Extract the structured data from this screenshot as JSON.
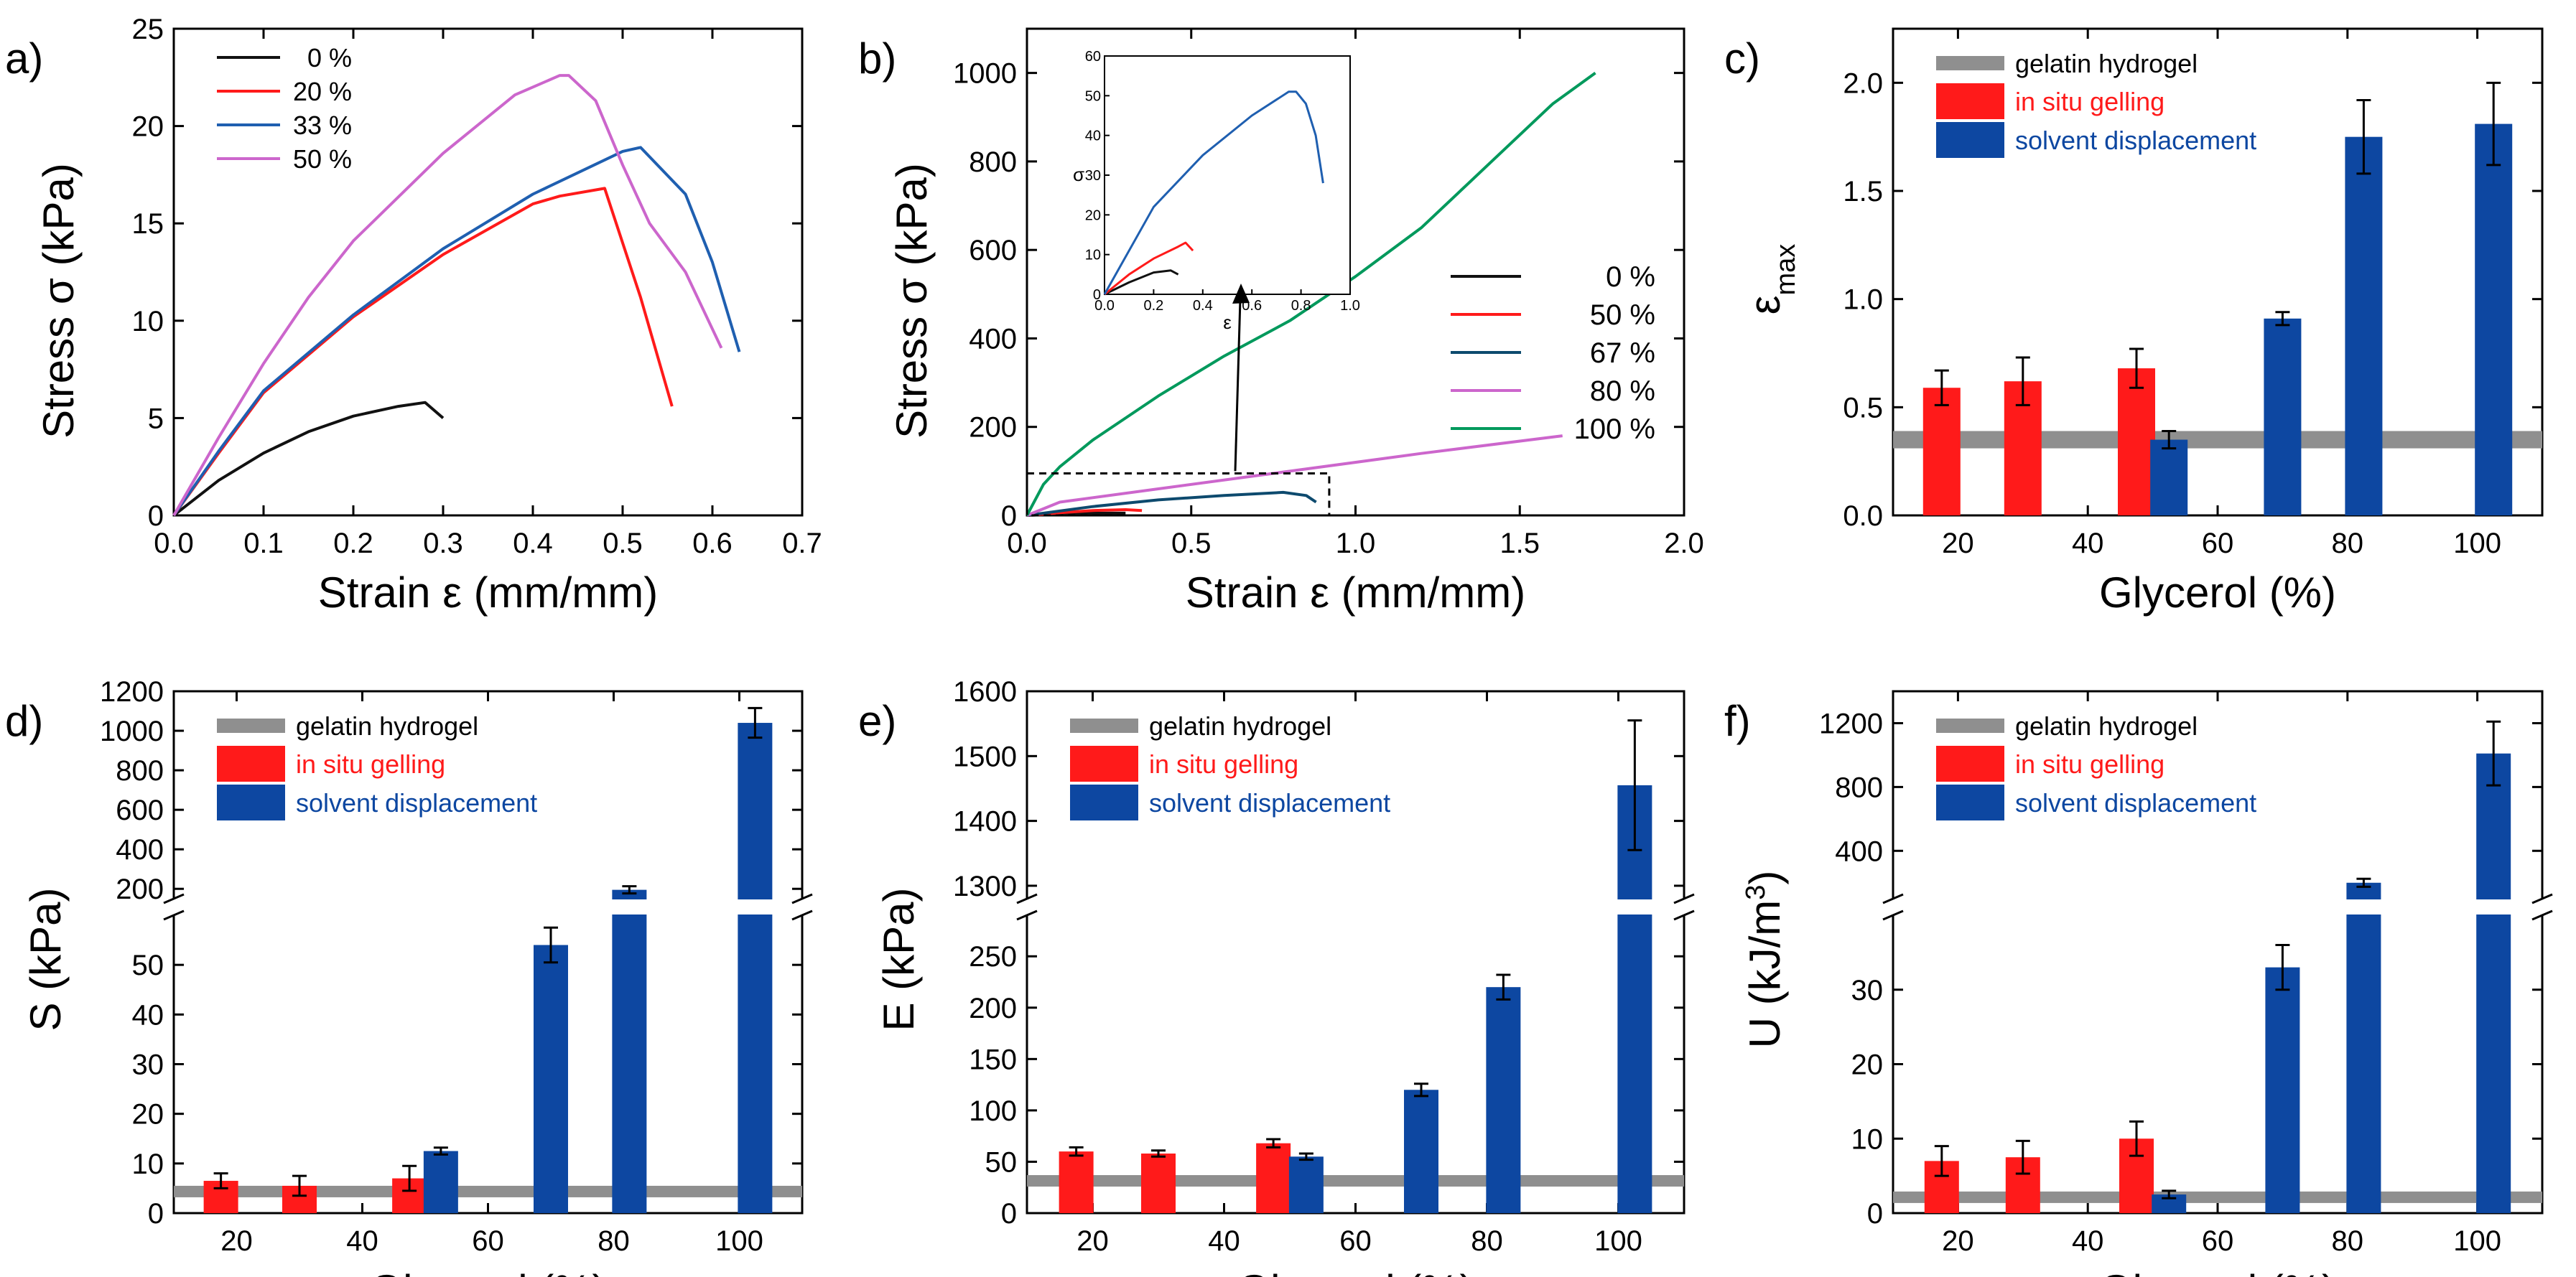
{
  "figure": {
    "colors": {
      "red": "#ff1a1a",
      "blue": "#0d47a1",
      "gray": "#8f8f8f",
      "axis": "#000000"
    }
  },
  "chart_data": [
    {
      "id": "a",
      "type": "line",
      "label": "a)",
      "xlabel": "Strain ε (mm/mm)",
      "ylabel": "Stress σ (kPa)",
      "xlim": [
        0,
        0.7
      ],
      "ylim": [
        0,
        25
      ],
      "xticks": [
        "0.0",
        "0.1",
        "0.2",
        "0.3",
        "0.4",
        "0.5",
        "0.6",
        "0.7"
      ],
      "xtick_values": [
        0,
        0.1,
        0.2,
        0.3,
        0.4,
        0.5,
        0.6,
        0.7
      ],
      "yticks": [
        "0",
        "5",
        "10",
        "15",
        "20",
        "25"
      ],
      "ytick_values": [
        0,
        5,
        10,
        15,
        20,
        25
      ],
      "legend_position": "top-left",
      "series": [
        {
          "name": "0 %",
          "color": "#111111",
          "x": [
            0,
            0.05,
            0.1,
            0.15,
            0.2,
            0.25,
            0.28,
            0.3
          ],
          "y": [
            0,
            1.8,
            3.2,
            4.3,
            5.1,
            5.6,
            5.8,
            5.0
          ]
        },
        {
          "name": "20 %",
          "color": "#ff1a1a",
          "x": [
            0,
            0.05,
            0.1,
            0.2,
            0.3,
            0.4,
            0.43,
            0.48,
            0.52,
            0.555
          ],
          "y": [
            0,
            3.2,
            6.3,
            10.2,
            13.4,
            16.0,
            16.4,
            16.8,
            11.2,
            5.6
          ]
        },
        {
          "name": "33 %",
          "color": "#1f5fb0",
          "x": [
            0,
            0.05,
            0.1,
            0.2,
            0.3,
            0.4,
            0.5,
            0.52,
            0.57,
            0.6,
            0.63
          ],
          "y": [
            0,
            3.3,
            6.4,
            10.3,
            13.7,
            16.5,
            18.7,
            18.9,
            16.5,
            13.0,
            8.4
          ]
        },
        {
          "name": "50 %",
          "color": "#cc66cc",
          "x": [
            0,
            0.05,
            0.1,
            0.15,
            0.2,
            0.3,
            0.38,
            0.43,
            0.44,
            0.47,
            0.5,
            0.53,
            0.57,
            0.61
          ],
          "y": [
            0,
            4.0,
            7.8,
            11.2,
            14.1,
            18.6,
            21.6,
            22.6,
            22.6,
            21.3,
            18.0,
            15.0,
            12.5,
            8.6
          ]
        }
      ]
    },
    {
      "id": "b",
      "type": "line",
      "label": "b)",
      "xlabel": "Strain ε (mm/mm)",
      "ylabel": "Stress σ (kPa)",
      "xlim": [
        0,
        2.0
      ],
      "ylim": [
        0,
        1100
      ],
      "xticks": [
        "0.0",
        "0.5",
        "1.0",
        "1.5",
        "2.0"
      ],
      "xtick_values": [
        0,
        0.5,
        1.0,
        1.5,
        2.0
      ],
      "yticks": [
        "0",
        "200",
        "400",
        "600",
        "800",
        "1000"
      ],
      "ytick_values": [
        0,
        200,
        400,
        600,
        800,
        1000
      ],
      "legend_position": "right",
      "series": [
        {
          "name": "0 %",
          "color": "#111111",
          "x": [
            0,
            0.1,
            0.2,
            0.3
          ],
          "y": [
            0,
            3,
            5,
            5
          ]
        },
        {
          "name": "50 %",
          "color": "#ff1a1a",
          "x": [
            0,
            0.1,
            0.2,
            0.3,
            0.35
          ],
          "y": [
            0,
            6,
            11,
            13,
            11
          ]
        },
        {
          "name": "67 %",
          "color": "#0d4a6e",
          "x": [
            0,
            0.2,
            0.4,
            0.6,
            0.78,
            0.85,
            0.88
          ],
          "y": [
            0,
            20,
            35,
            45,
            52,
            45,
            30
          ]
        },
        {
          "name": "80 %",
          "color": "#cc66cc",
          "x": [
            0,
            0.1,
            0.4,
            0.8,
            1.2,
            1.63
          ],
          "y": [
            0,
            30,
            60,
            100,
            140,
            180
          ]
        },
        {
          "name": "100 %",
          "color": "#00995c",
          "x": [
            0,
            0.05,
            0.1,
            0.2,
            0.4,
            0.6,
            0.8,
            1.0,
            1.2,
            1.4,
            1.6,
            1.73
          ],
          "y": [
            0,
            70,
            110,
            170,
            270,
            360,
            440,
            540,
            650,
            790,
            930,
            1000
          ]
        }
      ],
      "inset": {
        "xlabel": "ε",
        "ylabel": "σ",
        "xlim": [
          0,
          1.0
        ],
        "ylim": [
          0,
          60
        ],
        "xticks": [
          "0.0",
          "0.2",
          "0.4",
          "0.6",
          "0.8",
          "1.0"
        ],
        "xtick_values": [
          0,
          0.2,
          0.4,
          0.6,
          0.8,
          1.0
        ],
        "yticks": [
          "0",
          "10",
          "20",
          "30",
          "40",
          "50",
          "60"
        ],
        "ytick_values": [
          0,
          10,
          20,
          30,
          40,
          50,
          60
        ],
        "series": [
          {
            "color": "#111111",
            "x": [
              0,
              0.1,
              0.2,
              0.27,
              0.3
            ],
            "y": [
              0,
              3,
              5.5,
              6,
              5
            ]
          },
          {
            "color": "#ff1a1a",
            "x": [
              0,
              0.1,
              0.2,
              0.3,
              0.33,
              0.36
            ],
            "y": [
              0,
              5,
              9,
              12,
              13,
              11
            ]
          },
          {
            "color": "#1f5fb0",
            "x": [
              0,
              0.2,
              0.4,
              0.6,
              0.75,
              0.78,
              0.82,
              0.86,
              0.89
            ],
            "y": [
              0,
              22,
              35,
              45,
              51,
              51,
              48,
              40,
              28
            ]
          }
        ]
      }
    },
    {
      "id": "c",
      "type": "bar",
      "label": "c)",
      "xlabel": "Glycerol (%)",
      "ylabel": "ε",
      "ylabel_sub": "max",
      "xlim": [
        10,
        110
      ],
      "ylim": [
        0,
        2.25
      ],
      "xticks": [
        "20",
        "40",
        "60",
        "80",
        "100"
      ],
      "xtick_values": [
        20,
        40,
        60,
        80,
        100
      ],
      "yticks": [
        "0.0",
        "0.5",
        "1.0",
        "1.5",
        "2.0"
      ],
      "ytick_values": [
        0,
        0.5,
        1.0,
        1.5,
        2.0
      ],
      "reference_line": {
        "label": "gelatin hydrogel",
        "value": 0.35,
        "err": 0.04
      },
      "legend": [
        "gelatin hydrogel",
        "in situ gelling",
        "solvent displacement"
      ],
      "series": [
        {
          "name": "in situ gelling",
          "color": "#ff1a1a",
          "x": [
            17.5,
            30,
            47.5
          ],
          "values": [
            0.59,
            0.62,
            0.68
          ],
          "errors": [
            0.08,
            0.11,
            0.09
          ]
        },
        {
          "name": "solvent displacement",
          "color": "#0d47a1",
          "x": [
            52.5,
            70,
            82.5,
            102.5
          ],
          "values": [
            0.35,
            0.91,
            1.75,
            1.81
          ],
          "errors": [
            0.04,
            0.03,
            0.17,
            0.19
          ]
        }
      ]
    },
    {
      "id": "d",
      "type": "bar",
      "label": "d)",
      "xlabel": "Glycerol (%)",
      "ylabel": "S (kPa)",
      "xlim": [
        10,
        110
      ],
      "broken_axis": {
        "lower": [
          0,
          60
        ],
        "upper": [
          150,
          1200
        ]
      },
      "xticks": [
        "20",
        "40",
        "60",
        "80",
        "100"
      ],
      "xtick_values": [
        20,
        40,
        60,
        80,
        100
      ],
      "yticks_lower": [
        "0",
        "10",
        "20",
        "30",
        "40",
        "50"
      ],
      "yticks_lower_values": [
        0,
        10,
        20,
        30,
        40,
        50
      ],
      "yticks_upper": [
        "200",
        "400",
        "600",
        "800",
        "1000",
        "1200"
      ],
      "yticks_upper_values": [
        200,
        400,
        600,
        800,
        1000,
        1200
      ],
      "reference_line": {
        "label": "gelatin hydrogel",
        "value": 4.5,
        "err": 1
      },
      "legend": [
        "gelatin hydrogel",
        "in situ gelling",
        "solvent displacement"
      ],
      "series": [
        {
          "name": "in situ gelling",
          "color": "#ff1a1a",
          "x": [
            17.5,
            30,
            47.5
          ],
          "values": [
            6.5,
            5.5,
            7.0
          ],
          "errors": [
            1.5,
            2.0,
            2.5
          ]
        },
        {
          "name": "solvent displacement",
          "color": "#0d47a1",
          "x": [
            52.5,
            70,
            82.5,
            102.5
          ],
          "values": [
            12.5,
            54,
            195,
            1040
          ],
          "errors": [
            0.7,
            3.5,
            18,
            75
          ]
        }
      ]
    },
    {
      "id": "e",
      "type": "bar",
      "label": "e)",
      "xlabel": "Glycerol (%)",
      "ylabel": "E (kPa)",
      "xlim": [
        10,
        110
      ],
      "broken_axis": {
        "lower": [
          0,
          290
        ],
        "upper": [
          1280,
          1600
        ]
      },
      "xticks": [
        "20",
        "40",
        "60",
        "80",
        "100"
      ],
      "xtick_values": [
        20,
        40,
        60,
        80,
        100
      ],
      "yticks_lower": [
        "0",
        "50",
        "100",
        "150",
        "200",
        "250"
      ],
      "yticks_lower_values": [
        0,
        50,
        100,
        150,
        200,
        250
      ],
      "yticks_upper": [
        "1300",
        "1400",
        "1500",
        "1600"
      ],
      "yticks_upper_values": [
        1300,
        1400,
        1500,
        1600
      ],
      "reference_line": {
        "label": "gelatin hydrogel",
        "value": 32,
        "err": 5
      },
      "legend": [
        "gelatin hydrogel",
        "in situ gelling",
        "solvent displacement"
      ],
      "series": [
        {
          "name": "in situ gelling",
          "color": "#ff1a1a",
          "x": [
            17.5,
            30,
            47.5
          ],
          "values": [
            60,
            58,
            68
          ],
          "errors": [
            4,
            3,
            4
          ]
        },
        {
          "name": "solvent displacement",
          "color": "#0d47a1",
          "x": [
            52.5,
            70,
            82.5,
            102.5
          ],
          "values": [
            55,
            120,
            220,
            1455
          ],
          "errors": [
            3,
            6,
            12,
            100
          ]
        }
      ]
    },
    {
      "id": "f",
      "type": "bar",
      "label": "f)",
      "xlabel": "Glycerol (%)",
      "ylabel": "U (kJ/m",
      "ylabel_sup": "3",
      "ylabel_end": ")",
      "xlim": [
        10,
        110
      ],
      "broken_axis": {
        "lower": [
          0,
          40
        ],
        "upper": [
          100,
          1400
        ]
      },
      "xticks": [
        "20",
        "40",
        "60",
        "80",
        "100"
      ],
      "xtick_values": [
        20,
        40,
        60,
        80,
        100
      ],
      "yticks_lower": [
        "0",
        "10",
        "20",
        "30"
      ],
      "yticks_lower_values": [
        0,
        10,
        20,
        30
      ],
      "yticks_upper": [
        "400",
        "800",
        "1200"
      ],
      "yticks_upper_values": [
        400,
        800,
        1200
      ],
      "reference_line": {
        "label": "gelatin hydrogel",
        "value": 2.3,
        "err": 0.6
      },
      "legend": [
        "gelatin hydrogel",
        "in situ gelling",
        "solvent displacement"
      ],
      "series": [
        {
          "name": "in situ gelling",
          "color": "#ff1a1a",
          "x": [
            17.5,
            30,
            47.5
          ],
          "values": [
            7,
            7.5,
            10
          ],
          "errors": [
            2,
            2.2,
            2.3
          ]
        },
        {
          "name": "solvent displacement",
          "color": "#0d47a1",
          "x": [
            52.5,
            70,
            82.5,
            102.5
          ],
          "values": [
            2.5,
            33,
            200,
            1010
          ],
          "errors": [
            0.5,
            3,
            25,
            200
          ]
        }
      ]
    }
  ]
}
